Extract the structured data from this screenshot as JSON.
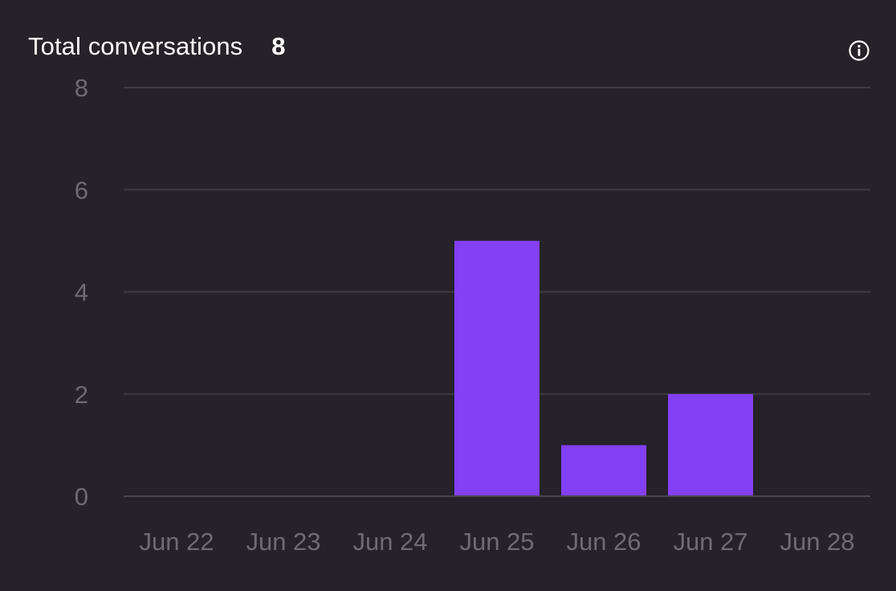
{
  "header": {
    "title": "Total conversations",
    "total": "8"
  },
  "info_icon": "info-icon",
  "colors": {
    "background": "#252229",
    "bar": "#8440f5",
    "grid": "#3d3a42",
    "tick_text": "#6e6b73",
    "title_text": "#ffffff"
  },
  "chart_data": {
    "type": "bar",
    "categories": [
      "Jun 22",
      "Jun 23",
      "Jun 24",
      "Jun 25",
      "Jun 26",
      "Jun 27",
      "Jun 28"
    ],
    "values": [
      0,
      0,
      0,
      5,
      1,
      2,
      0
    ],
    "yticks": [
      0,
      2,
      4,
      6,
      8
    ],
    "ylim": [
      0,
      8
    ],
    "grid": true,
    "legend": "none"
  }
}
